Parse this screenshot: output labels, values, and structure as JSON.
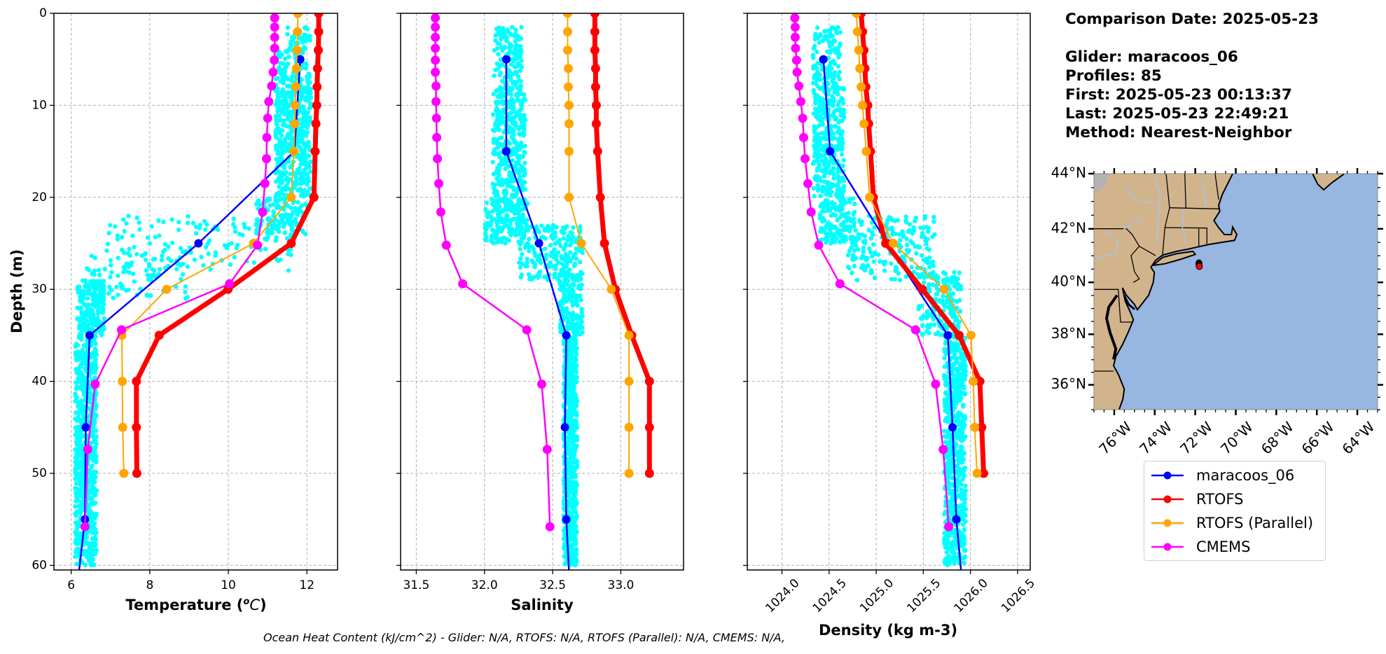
{
  "info": {
    "comparison_date": "Comparison Date: 2025-05-23",
    "glider": "Glider: maracoos_06",
    "profiles": "Profiles: 85",
    "first": "First: 2025-05-23 00:13:37",
    "last": "Last: 2025-05-23 22:49:21",
    "method": "Method: Nearest-Neighbor"
  },
  "footer": "Ocean Heat Content (kJ/cm^2) - Glider: N/A,  RTOFS: N/A,  RTOFS (Parallel): N/A,  CMEMS: N/A,",
  "legend": [
    {
      "name": "maracoos_06",
      "color": "#0000ff"
    },
    {
      "name": "RTOFS",
      "color": "#ff0000"
    },
    {
      "name": "RTOFS (Parallel)",
      "color": "#ffa500"
    },
    {
      "name": "CMEMS",
      "color": "#ff00ff"
    }
  ],
  "map": {
    "extent": {
      "lon": [
        -77,
        -63
      ],
      "lat": [
        35,
        44
      ]
    },
    "lon_ticks": [
      -76,
      -74,
      -72,
      -70,
      -68,
      -66,
      -64
    ],
    "lon_labels": [
      "76°W",
      "74°W",
      "72°W",
      "70°W",
      "68°W",
      "66°W",
      "64°W"
    ],
    "lat_ticks": [
      44,
      42,
      40,
      38,
      36
    ],
    "lat_labels": [
      "44°N",
      "42°N",
      "40°N",
      "38°N",
      "36°N"
    ],
    "glider_position": {
      "lon": -71.8,
      "lat": 40.6
    },
    "land_color": "#d2b48c",
    "ocean_color": "#97b6e1",
    "marker_color": "#ff0000"
  },
  "chart_data": {
    "type": "line",
    "ylabel": "Depth (m)",
    "ylim": [
      60.5,
      0
    ],
    "yticks": [
      0,
      10,
      20,
      30,
      40,
      50,
      60
    ],
    "ytick_labels": [
      "0",
      "10",
      "20",
      "30",
      "40",
      "50",
      "60"
    ],
    "grid": true,
    "legend_placement": "right, below map",
    "series_colors": {
      "maracoos_06": "#0000ff",
      "RTOFS": "#ff0000",
      "RTOFS (Parallel)": "#ffa500",
      "CMEMS": "#ff00ff",
      "glider_raw": "#00ffff"
    },
    "panels": [
      {
        "xlabel_parts": [
          "Temperature (",
          "o",
          "C",
          ")"
        ],
        "xlim": [
          5.56,
          12.78
        ],
        "xticks": [
          6,
          8,
          10,
          12
        ],
        "xtick_labels": [
          "6",
          "8",
          "10",
          "12"
        ],
        "glider_scatter_bands": [
          {
            "depth": [
              1.5,
              4
            ],
            "value": [
              11.5,
              12.1
            ],
            "count": 40
          },
          {
            "depth": [
              4,
              20
            ],
            "value": [
              11.2,
              12.1
            ],
            "count": 500
          },
          {
            "depth": [
              20,
              24
            ],
            "value": [
              10.7,
              12.0
            ],
            "count": 120
          },
          {
            "depth": [
              22,
              28
            ],
            "value": [
              6.9,
              11.6
            ],
            "count": 130
          },
          {
            "depth": [
              26,
              31
            ],
            "value": [
              6.4,
              9.0
            ],
            "count": 90
          },
          {
            "depth": [
              29,
              35
            ],
            "value": [
              6.15,
              6.85
            ],
            "count": 200
          },
          {
            "depth": [
              35,
              60
            ],
            "value": [
              6.1,
              6.65
            ],
            "count": 700
          }
        ],
        "series": [
          {
            "name": "maracoos_06",
            "depths": [
              5,
              15,
              25,
              35,
              45,
              55,
              65
            ],
            "values": [
              11.83,
              11.68,
              9.24,
              6.47,
              6.37,
              6.35,
              6.08
            ]
          },
          {
            "name": "RTOFS",
            "depths": [
              0,
              2,
              4,
              6,
              8,
              10,
              12,
              15,
              20,
              25,
              30,
              35,
              40,
              45,
              50
            ],
            "values": [
              12.3,
              12.3,
              12.29,
              12.27,
              12.26,
              12.25,
              12.23,
              12.21,
              12.18,
              11.6,
              9.99,
              8.24,
              7.66,
              7.66,
              7.67
            ]
          },
          {
            "name": "RTOFS (Parallel)",
            "depths": [
              0,
              2,
              4,
              6,
              8,
              10,
              12,
              15,
              20,
              25,
              30,
              35,
              40,
              45,
              50
            ],
            "values": [
              11.77,
              11.76,
              11.75,
              11.73,
              11.72,
              11.7,
              11.69,
              11.67,
              11.6,
              10.64,
              8.43,
              7.29,
              7.3,
              7.31,
              7.34
            ]
          },
          {
            "name": "CMEMS",
            "depths": [
              0.5,
              1.5,
              2.6,
              3.8,
              5.1,
              6.4,
              7.9,
              9.6,
              11.4,
              13.5,
              15.8,
              18.5,
              21.6,
              25.2,
              29.4,
              34.4,
              40.3,
              47.4,
              55.8
            ],
            "values": [
              11.18,
              11.18,
              11.18,
              11.18,
              11.17,
              11.14,
              11.1,
              11.03,
              11.0,
              10.98,
              10.97,
              10.93,
              10.87,
              10.74,
              10.03,
              7.28,
              6.61,
              6.42,
              6.35
            ]
          }
        ]
      },
      {
        "xlabel_parts": [
          "Salinity"
        ],
        "xlim": [
          31.385,
          33.46
        ],
        "xticks": [
          31.5,
          32.0,
          32.5,
          33.0
        ],
        "xtick_labels": [
          "31.5",
          "32.0",
          "32.5",
          "33.0"
        ],
        "glider_scatter_bands": [
          {
            "depth": [
              1.5,
              8
            ],
            "value": [
              32.07,
              32.28
            ],
            "count": 120
          },
          {
            "depth": [
              8,
              20
            ],
            "value": [
              32.06,
              32.3
            ],
            "count": 350
          },
          {
            "depth": [
              20,
              25
            ],
            "value": [
              32.0,
              32.32
            ],
            "count": 200
          },
          {
            "depth": [
              23,
              29
            ],
            "value": [
              32.25,
              32.72
            ],
            "count": 200
          },
          {
            "depth": [
              28,
              35
            ],
            "value": [
              32.55,
              32.72
            ],
            "count": 200
          },
          {
            "depth": [
              35,
              60
            ],
            "value": [
              32.58,
              32.68
            ],
            "count": 700
          }
        ],
        "series": [
          {
            "name": "maracoos_06",
            "depths": [
              5,
              15,
              25,
              35,
              45,
              55,
              65
            ],
            "values": [
              32.16,
              32.16,
              32.4,
              32.6,
              32.59,
              32.6,
              32.635
            ]
          },
          {
            "name": "RTOFS",
            "depths": [
              0,
              2,
              4,
              6,
              8,
              10,
              12,
              15,
              20,
              25,
              30,
              35,
              40,
              45,
              50
            ],
            "values": [
              32.81,
              32.81,
              32.81,
              32.815,
              32.815,
              32.82,
              32.82,
              32.83,
              32.85,
              32.88,
              32.96,
              33.08,
              33.21,
              33.21,
              33.21
            ]
          },
          {
            "name": "RTOFS (Parallel)",
            "depths": [
              0,
              2,
              4,
              6,
              8,
              10,
              12,
              15,
              20,
              25,
              30,
              35,
              40,
              45,
              50
            ],
            "values": [
              32.61,
              32.61,
              32.61,
              32.615,
              32.615,
              32.62,
              32.62,
              32.62,
              32.62,
              32.71,
              32.93,
              33.06,
              33.06,
              33.06,
              33.06
            ]
          },
          {
            "name": "CMEMS",
            "depths": [
              0.5,
              1.5,
              2.6,
              3.8,
              5.1,
              6.4,
              7.9,
              9.6,
              11.4,
              13.5,
              15.8,
              18.5,
              21.6,
              25.2,
              29.4,
              34.4,
              40.3,
              47.4,
              55.8
            ],
            "values": [
              31.64,
              31.64,
              31.64,
              31.64,
              31.64,
              31.64,
              31.645,
              31.645,
              31.648,
              31.65,
              31.655,
              31.665,
              31.68,
              31.72,
              31.84,
              32.31,
              32.42,
              32.46,
              32.48
            ]
          }
        ]
      },
      {
        "xlabel_parts": [
          "Density (kg m-3)"
        ],
        "xlim": [
          1023.632,
          1026.634
        ],
        "xticks": [
          1024.0,
          1024.5,
          1025.0,
          1025.5,
          1026.0,
          1026.5
        ],
        "xtick_labels": [
          "1024.0",
          "1024.5",
          "1025.0",
          "1025.5",
          "1026.0",
          "1026.5"
        ],
        "xtick_rotation": 45,
        "glider_scatter_bands": [
          {
            "depth": [
              1.5,
              8
            ],
            "value": [
              1024.33,
              1024.62
            ],
            "count": 120
          },
          {
            "depth": [
              8,
              20
            ],
            "value": [
              1024.33,
              1024.66
            ],
            "count": 350
          },
          {
            "depth": [
              20,
              25
            ],
            "value": [
              1024.4,
              1024.78
            ],
            "count": 150
          },
          {
            "depth": [
              22,
              29
            ],
            "value": [
              1024.7,
              1025.62
            ],
            "count": 200
          },
          {
            "depth": [
              28,
              35
            ],
            "value": [
              1025.45,
              1025.9
            ],
            "count": 180
          },
          {
            "depth": [
              35,
              60
            ],
            "value": [
              1025.72,
              1025.95
            ],
            "count": 700
          }
        ],
        "series": [
          {
            "name": "maracoos_06",
            "depths": [
              5,
              15,
              25,
              35,
              45,
              55,
              65
            ],
            "values": [
              1024.44,
              1024.51,
              1025.12,
              1025.76,
              1025.81,
              1025.85,
              1025.94
            ]
          },
          {
            "name": "RTOFS",
            "depths": [
              0,
              2,
              4,
              6,
              8,
              10,
              12,
              15,
              20,
              25,
              30,
              35,
              40,
              45,
              50
            ],
            "values": [
              1024.84,
              1024.855,
              1024.87,
              1024.88,
              1024.89,
              1024.91,
              1024.92,
              1024.94,
              1024.97,
              1025.1,
              1025.49,
              1025.88,
              1026.1,
              1026.12,
              1026.14
            ]
          },
          {
            "name": "RTOFS (Parallel)",
            "depths": [
              0,
              2,
              4,
              6,
              8,
              10,
              12,
              15,
              20,
              25,
              30,
              35,
              40,
              45,
              50
            ],
            "values": [
              1024.79,
              1024.8,
              1024.815,
              1024.825,
              1024.84,
              1024.855,
              1024.87,
              1024.895,
              1024.93,
              1025.18,
              1025.72,
              1026.005,
              1026.03,
              1026.045,
              1026.07
            ]
          },
          {
            "name": "CMEMS",
            "depths": [
              0.5,
              1.5,
              2.6,
              3.8,
              5.1,
              6.4,
              7.9,
              9.6,
              11.4,
              13.5,
              15.8,
              18.5,
              21.6,
              25.2,
              29.4,
              34.4,
              40.3,
              47.4,
              55.8
            ],
            "values": [
              1024.136,
              1024.14,
              1024.14,
              1024.145,
              1024.155,
              1024.16,
              1024.18,
              1024.2,
              1024.22,
              1024.23,
              1024.245,
              1024.275,
              1024.31,
              1024.39,
              1024.615,
              1025.417,
              1025.63,
              1025.71,
              1025.77
            ]
          }
        ]
      }
    ]
  }
}
